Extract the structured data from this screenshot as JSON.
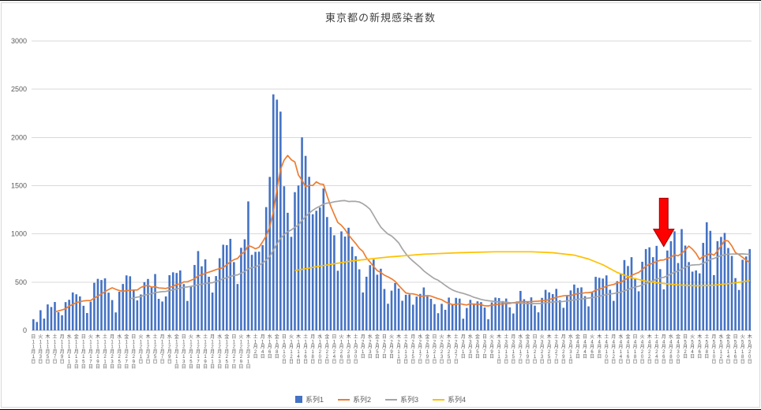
{
  "chart_data": {
    "type": "bar",
    "title": "東京都の新規感染者数",
    "grid": "horizontal",
    "legend_position": "bottom",
    "y_axis": {
      "min": 0,
      "max": 3000,
      "step": 500,
      "tick_labels": [
        "0",
        "500",
        "1000",
        "1500",
        "2000",
        "2500",
        "3000"
      ]
    },
    "x_axis": {
      "start_label": "11月1日",
      "end_label": "5月20日",
      "tick_interval_days": 2,
      "first_weekday": "日",
      "weekdays": [
        "日",
        "月",
        "火",
        "水",
        "木",
        "金",
        "土"
      ],
      "months": [
        [
          11,
          30
        ],
        [
          12,
          31
        ],
        [
          1,
          31
        ],
        [
          2,
          28
        ],
        [
          3,
          31
        ],
        [
          4,
          30
        ],
        [
          5,
          20
        ]
      ],
      "month_suffix": "月",
      "day_suffix": "日"
    },
    "series": [
      {
        "name": "系列1",
        "type": "bar",
        "color": "#4472C4",
        "values": [
          116,
          87,
          209,
          122,
          269,
          242,
          294,
          189,
          157,
          293,
          317,
          393,
          374,
          352,
          255,
          180,
          298,
          493,
          534,
          522,
          539,
          391,
          314,
          186,
          401,
          481,
          570,
          561,
          418,
          311,
          372,
          500,
          533,
          449,
          584,
          327,
          299,
          352,
          572,
          602,
          595,
          621,
          480,
          305,
          460,
          678,
          822,
          664,
          736,
          556,
          392,
          563,
          748,
          888,
          884,
          949,
          708,
          481,
          856,
          944,
          1337,
          783,
          814,
          816,
          884,
          1278,
          1591,
          2447,
          2392,
          2268,
          1494,
          1219,
          970,
          1433,
          1502,
          2001,
          1809,
          1592,
          1204,
          1240,
          1274,
          1471,
          1175,
          1070,
          986,
          618,
          1026,
          973,
          1064,
          868,
          769,
          633,
          393,
          556,
          676,
          734,
          577,
          639,
          429,
          276,
          412,
          491,
          434,
          307,
          369,
          371,
          266,
          350,
          378,
          445,
          353,
          327,
          272,
          178,
          275,
          213,
          340,
          270,
          337,
          329,
          121,
          232,
          316,
          279,
          301,
          293,
          237,
          116,
          290,
          340,
          335,
          304,
          330,
          239,
          175,
          300,
          409,
          323,
          303,
          342,
          256,
          187,
          337,
          420,
          394,
          376,
          430,
          313,
          234,
          364,
          414,
          475,
          440,
          446,
          355,
          249,
          399,
          555,
          545,
          537,
          570,
          421,
          306,
          510,
          591,
          729,
          667,
          759,
          543,
          405,
          711,
          843,
          861,
          759,
          876,
          635,
          425,
          828,
          925,
          1027,
          698,
          1050,
          879,
          708,
          609,
          621,
          591,
          907,
          1121,
          1032,
          573,
          925,
          969,
          1010,
          854,
          772,
          542,
          419,
          732,
          766,
          843
        ]
      },
      {
        "name": "系列2",
        "type": "line",
        "color": "#ED7D31",
        "derived": "7-day moving average of 系列1",
        "window": 7
      },
      {
        "name": "系列3",
        "type": "line",
        "color": "#A5A5A5",
        "derived": "28-day moving average of 系列1",
        "window": 28
      },
      {
        "name": "系列4",
        "type": "line",
        "color": "#FFC000",
        "points": [
          [
            74,
            620
          ],
          [
            80,
            660
          ],
          [
            90,
            720
          ],
          [
            100,
            760
          ],
          [
            110,
            790
          ],
          [
            120,
            805
          ],
          [
            130,
            815
          ],
          [
            140,
            815
          ],
          [
            146,
            805
          ],
          [
            152,
            780
          ],
          [
            156,
            740
          ],
          [
            160,
            680
          ],
          [
            164,
            600
          ],
          [
            168,
            545
          ],
          [
            172,
            510
          ],
          [
            176,
            490
          ],
          [
            181,
            472
          ],
          [
            186,
            462
          ],
          [
            191,
            468
          ],
          [
            196,
            488
          ],
          [
            201,
            515
          ]
        ]
      }
    ],
    "annotation": {
      "shape": "block-arrow-down",
      "fill": "#FF0000",
      "border": "#9C0006",
      "day_index": 177,
      "top_value": 1370,
      "tip_value": 870
    }
  }
}
